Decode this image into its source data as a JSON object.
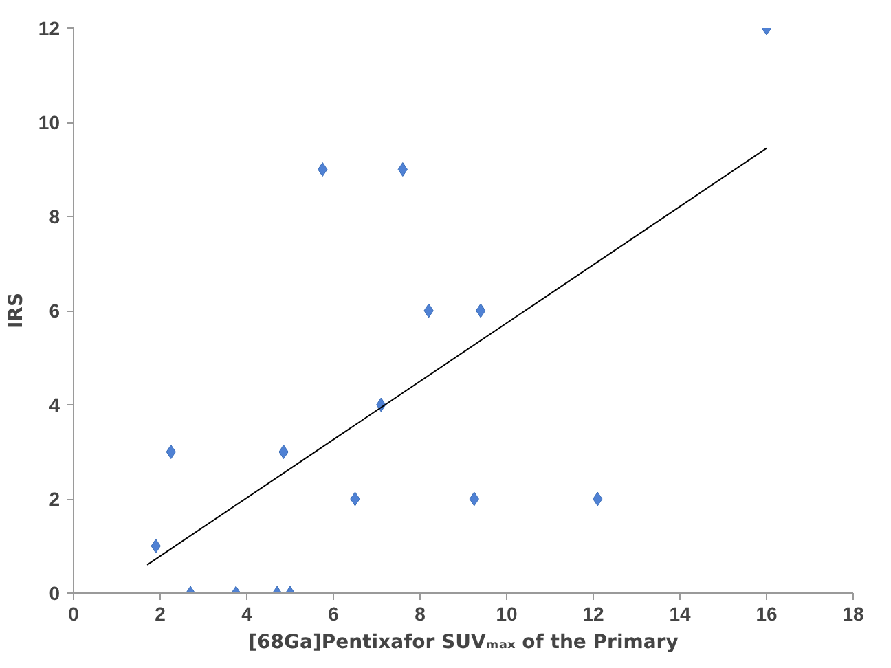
{
  "chart_data": {
    "type": "scatter",
    "xlabel": "[68Ga]Pentixafor SUVₘₐₓ of the Primary",
    "ylabel": "IRS",
    "xlim": [
      0,
      18
    ],
    "ylim": [
      0,
      12
    ],
    "xticks": [
      0,
      2,
      4,
      6,
      8,
      10,
      12,
      14,
      16,
      18
    ],
    "yticks": [
      0,
      2,
      4,
      6,
      8,
      10,
      12
    ],
    "grid": false,
    "series": [
      {
        "marker": "diamond",
        "color": "#4f81d4",
        "x": [
          1.9,
          2.25,
          2.7,
          3.75,
          4.7,
          4.85,
          5.0,
          5.75,
          6.5,
          7.1,
          7.6,
          8.2,
          9.25,
          9.4,
          12.1,
          16.0
        ],
        "values": [
          1,
          3,
          0,
          0,
          0,
          3,
          0,
          9,
          2,
          4,
          9,
          6,
          2,
          6,
          2,
          12
        ]
      },
      {
        "type": "line",
        "marker": "none",
        "color": "#000000",
        "x": [
          1.7,
          16.0
        ],
        "values": [
          0.6,
          9.45
        ]
      }
    ]
  }
}
